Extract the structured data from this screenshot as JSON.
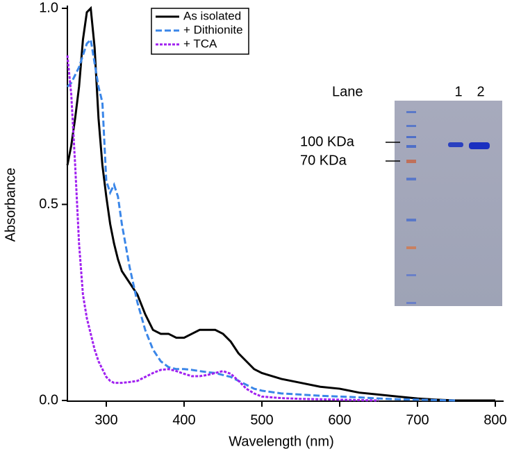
{
  "chart_data": {
    "type": "line",
    "x_label": "Wavelength (nm)",
    "y_label": "Absorbance",
    "x": [
      250,
      255,
      260,
      265,
      270,
      275,
      280,
      285,
      290,
      295,
      300,
      305,
      310,
      315,
      320,
      330,
      340,
      350,
      360,
      370,
      380,
      390,
      400,
      410,
      420,
      430,
      440,
      450,
      460,
      470,
      480,
      490,
      500,
      525,
      550,
      575,
      600,
      625,
      650,
      675,
      700,
      725,
      750,
      775,
      800
    ],
    "series": [
      {
        "name": "As isolated",
        "color": "#000000",
        "dash": "solid",
        "values": [
          0.6,
          0.65,
          0.72,
          0.8,
          0.92,
          0.99,
          1.0,
          0.9,
          0.72,
          0.6,
          0.52,
          0.45,
          0.4,
          0.36,
          0.33,
          0.3,
          0.27,
          0.22,
          0.18,
          0.17,
          0.17,
          0.16,
          0.16,
          0.17,
          0.18,
          0.18,
          0.18,
          0.17,
          0.15,
          0.12,
          0.1,
          0.08,
          0.07,
          0.055,
          0.045,
          0.035,
          0.03,
          0.02,
          0.015,
          0.01,
          0.005,
          0.002,
          0,
          0,
          0
        ]
      },
      {
        "name": "+ Dithionite",
        "color": "#3a86e8",
        "dash": "dashed",
        "values": [
          0.8,
          0.81,
          0.83,
          0.85,
          0.88,
          0.91,
          0.92,
          0.86,
          0.8,
          0.76,
          0.56,
          0.53,
          0.55,
          0.52,
          0.45,
          0.34,
          0.25,
          0.18,
          0.13,
          0.1,
          0.085,
          0.08,
          0.08,
          0.078,
          0.075,
          0.072,
          0.07,
          0.065,
          0.06,
          0.05,
          0.04,
          0.03,
          0.025,
          0.018,
          0.015,
          0.012,
          0.01,
          0.008,
          0.005,
          0.003,
          0.002,
          0.001,
          0,
          null,
          null
        ]
      },
      {
        "name": "+ TCA",
        "color": "#a020f0",
        "dash": "dotted",
        "values": [
          0.88,
          0.78,
          0.6,
          0.4,
          0.27,
          0.21,
          0.17,
          0.13,
          0.1,
          0.08,
          0.06,
          0.05,
          0.045,
          0.045,
          0.045,
          0.047,
          0.05,
          0.06,
          0.07,
          0.078,
          0.08,
          0.075,
          0.068,
          0.062,
          0.062,
          0.065,
          0.07,
          0.075,
          0.068,
          0.05,
          0.03,
          0.018,
          0.01,
          0.006,
          0.004,
          0.003,
          0.002,
          0.001,
          0,
          null,
          null,
          null,
          null,
          null,
          null
        ]
      }
    ],
    "xlim": [
      250,
      800
    ],
    "xticks": [
      300,
      400,
      500,
      600,
      700,
      800
    ],
    "ylim": [
      0,
      1.0
    ],
    "yticks": [
      {
        "value": 0,
        "label": "0.0"
      },
      {
        "value": 0.5,
        "label": "0.5"
      },
      {
        "value": 1.0,
        "label": "1.0"
      }
    ],
    "grid": false,
    "legend": "top",
    "inset": {
      "lane_label": "Lane",
      "lanes": [
        "1",
        "2"
      ],
      "markers": [
        "100 KDa",
        "70 KDa"
      ]
    }
  }
}
